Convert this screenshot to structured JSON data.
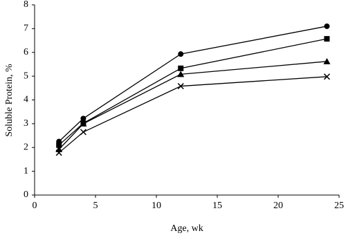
{
  "chart_data": {
    "type": "line",
    "xlabel": "Age, wk",
    "ylabel": "Soluble Protein, %",
    "xlim": [
      0,
      25
    ],
    "xticks": [
      0,
      5,
      10,
      15,
      20,
      25
    ],
    "ylim": [
      0,
      8
    ],
    "yticks": [
      0,
      1,
      2,
      3,
      4,
      5,
      6,
      7,
      8
    ],
    "x": [
      2,
      4,
      12,
      24
    ],
    "series": [
      {
        "color": "#000000",
        "marker": "circle",
        "values": [
          2.25,
          3.22,
          5.93,
          7.1
        ]
      },
      {
        "color": "#000000",
        "marker": "square",
        "values": [
          2.1,
          3.02,
          5.33,
          6.57
        ]
      },
      {
        "color": "#000000",
        "marker": "triangle",
        "values": [
          1.92,
          3.0,
          5.08,
          5.62
        ]
      },
      {
        "color": "#000000",
        "marker": "x",
        "values": [
          1.78,
          2.65,
          4.58,
          4.98
        ]
      }
    ]
  }
}
